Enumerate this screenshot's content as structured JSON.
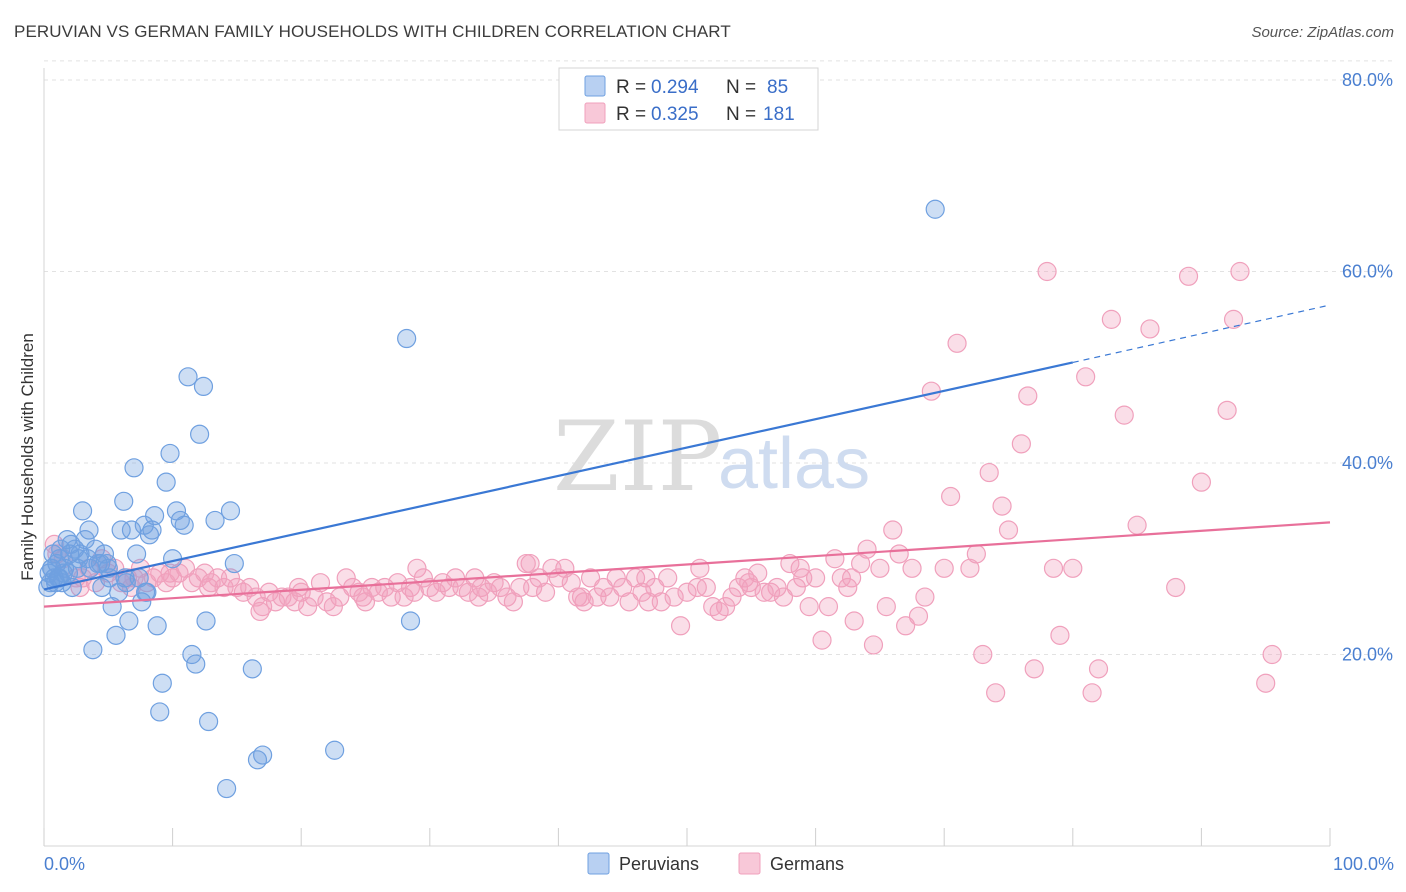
{
  "title": "PERUVIAN VS GERMAN FAMILY HOUSEHOLDS WITH CHILDREN CORRELATION CHART",
  "source": "Source: ZipAtlas.com",
  "watermark": {
    "zip": "ZIP",
    "atlas": "atlas"
  },
  "legend": {
    "r_label": "R =",
    "n_label": "N =",
    "rows": [
      {
        "r": "0.294",
        "n": "85"
      },
      {
        "r": "0.325",
        "n": "181"
      }
    ]
  },
  "chart_data": {
    "type": "scatter",
    "title": "PERUVIAN VS GERMAN FAMILY HOUSEHOLDS WITH CHILDREN CORRELATION CHART",
    "xlabel": "",
    "ylabel": "Family Households with Children",
    "x_tick_labels": [
      "0.0%",
      "100.0%"
    ],
    "y_tick_labels": [
      "20.0%",
      "40.0%",
      "60.0%",
      "80.0%"
    ],
    "xlim": [
      0,
      100
    ],
    "ylim": [
      0,
      82
    ],
    "grid": true,
    "colors": {
      "peruvians": "#6fa0e0",
      "germans": "#f0a0bc",
      "peruvians_line": "#3a78d4",
      "germans_line": "#e8709a"
    },
    "series": [
      {
        "name": "Peruvians",
        "r": 0.294,
        "n": 85,
        "trend": {
          "x0": 0,
          "y0": 26.8,
          "x1": 80,
          "y1": 50.5,
          "dashed_to_x": 100,
          "dashed_to_y": 56.5
        },
        "points": [
          [
            0.3,
            27
          ],
          [
            0.4,
            28.5
          ],
          [
            0.5,
            27.5
          ],
          [
            0.6,
            29
          ],
          [
            0.7,
            30.5
          ],
          [
            0.8,
            28
          ],
          [
            0.9,
            27.5
          ],
          [
            1.0,
            29.5
          ],
          [
            1.1,
            28
          ],
          [
            1.2,
            30
          ],
          [
            1.3,
            31
          ],
          [
            1.5,
            28.5
          ],
          [
            1.6,
            29
          ],
          [
            1.8,
            32
          ],
          [
            1.9,
            28.5
          ],
          [
            2.0,
            30.5
          ],
          [
            2.2,
            27
          ],
          [
            2.4,
            31
          ],
          [
            2.6,
            29
          ],
          [
            2.8,
            30.5
          ],
          [
            3.0,
            35
          ],
          [
            3.2,
            32
          ],
          [
            3.4,
            30
          ],
          [
            3.5,
            33
          ],
          [
            3.8,
            20.5
          ],
          [
            4.0,
            31
          ],
          [
            4.2,
            29.5
          ],
          [
            4.5,
            27
          ],
          [
            4.7,
            30.5
          ],
          [
            4.9,
            29.5
          ],
          [
            5.1,
            28
          ],
          [
            5.3,
            25
          ],
          [
            5.6,
            22
          ],
          [
            5.8,
            26.5
          ],
          [
            6.0,
            33
          ],
          [
            6.2,
            36
          ],
          [
            6.4,
            27.5
          ],
          [
            6.6,
            23.5
          ],
          [
            6.8,
            33
          ],
          [
            7.0,
            39.5
          ],
          [
            7.2,
            30.5
          ],
          [
            7.4,
            28
          ],
          [
            7.6,
            25.5
          ],
          [
            7.8,
            33.5
          ],
          [
            8.0,
            26.5
          ],
          [
            8.2,
            32.5
          ],
          [
            8.4,
            33
          ],
          [
            8.6,
            34.5
          ],
          [
            8.8,
            23
          ],
          [
            9.0,
            14
          ],
          [
            9.2,
            17
          ],
          [
            9.5,
            38
          ],
          [
            9.8,
            41
          ],
          [
            10.0,
            30
          ],
          [
            10.3,
            35
          ],
          [
            10.6,
            34
          ],
          [
            10.9,
            33.5
          ],
          [
            11.2,
            49
          ],
          [
            11.5,
            20
          ],
          [
            11.8,
            19
          ],
          [
            12.1,
            43
          ],
          [
            12.4,
            48
          ],
          [
            12.6,
            23.5
          ],
          [
            12.8,
            13
          ],
          [
            13.3,
            34
          ],
          [
            14.2,
            6
          ],
          [
            14.5,
            35
          ],
          [
            14.8,
            29.5
          ],
          [
            16.2,
            18.5
          ],
          [
            16.6,
            9
          ],
          [
            17.0,
            9.5
          ],
          [
            22.6,
            10
          ],
          [
            28.2,
            53
          ],
          [
            28.5,
            23.5
          ],
          [
            69.3,
            66.5
          ],
          [
            0.6,
            29
          ],
          [
            1.4,
            27.5
          ],
          [
            2.1,
            31.5
          ],
          [
            3.6,
            29
          ],
          [
            5.0,
            29
          ],
          [
            6.3,
            28
          ],
          [
            7.9,
            26.5
          ],
          [
            1.2,
            28
          ],
          [
            2.7,
            30
          ],
          [
            4.4,
            29.5
          ]
        ]
      },
      {
        "name": "Germans",
        "r": 0.325,
        "n": 181,
        "trend": {
          "x0": 0,
          "y0": 25,
          "x1": 100,
          "y1": 33.8
        },
        "points": [
          [
            0.8,
            31.5
          ],
          [
            1.5,
            30
          ],
          [
            2.5,
            28
          ],
          [
            2.8,
            27
          ],
          [
            3.5,
            29
          ],
          [
            4.0,
            27.5
          ],
          [
            4.5,
            30
          ],
          [
            5.0,
            28.5
          ],
          [
            5.5,
            29
          ],
          [
            6.0,
            27.5
          ],
          [
            6.5,
            28
          ],
          [
            7.0,
            28
          ],
          [
            7.5,
            29
          ],
          [
            8.0,
            27.5
          ],
          [
            8.5,
            28
          ],
          [
            9.0,
            28.5
          ],
          [
            9.5,
            27.5
          ],
          [
            10.0,
            28
          ],
          [
            10.5,
            28.5
          ],
          [
            11.0,
            29
          ],
          [
            11.5,
            27.5
          ],
          [
            12.0,
            28
          ],
          [
            12.5,
            28.5
          ],
          [
            13.0,
            27.5
          ],
          [
            13.5,
            28
          ],
          [
            14.0,
            27
          ],
          [
            14.5,
            28
          ],
          [
            15.0,
            27
          ],
          [
            15.5,
            26.5
          ],
          [
            16.0,
            27
          ],
          [
            16.5,
            26
          ],
          [
            17.0,
            25
          ],
          [
            17.5,
            26.5
          ],
          [
            18.0,
            25.5
          ],
          [
            18.5,
            26
          ],
          [
            19.0,
            26
          ],
          [
            19.5,
            25.5
          ],
          [
            20.0,
            26.5
          ],
          [
            20.5,
            25
          ],
          [
            21.0,
            26
          ],
          [
            21.5,
            27.5
          ],
          [
            22.0,
            25.5
          ],
          [
            22.5,
            25
          ],
          [
            23.0,
            26
          ],
          [
            23.5,
            28
          ],
          [
            24.0,
            27
          ],
          [
            24.5,
            26.5
          ],
          [
            25.0,
            25.5
          ],
          [
            25.5,
            27
          ],
          [
            26.0,
            26.5
          ],
          [
            26.5,
            27
          ],
          [
            27.0,
            26
          ],
          [
            27.5,
            27.5
          ],
          [
            28.0,
            26
          ],
          [
            28.5,
            27
          ],
          [
            29.0,
            29
          ],
          [
            29.5,
            28
          ],
          [
            30.0,
            27
          ],
          [
            30.5,
            26.5
          ],
          [
            31.0,
            27.5
          ],
          [
            31.5,
            27
          ],
          [
            32.0,
            28
          ],
          [
            32.5,
            27
          ],
          [
            33.0,
            26.5
          ],
          [
            33.5,
            28
          ],
          [
            34.0,
            27
          ],
          [
            34.5,
            26.5
          ],
          [
            35.0,
            27.5
          ],
          [
            35.5,
            27
          ],
          [
            36.0,
            26
          ],
          [
            36.5,
            25.5
          ],
          [
            37.0,
            27
          ],
          [
            37.5,
            29.5
          ],
          [
            38.0,
            27
          ],
          [
            38.5,
            28
          ],
          [
            39.0,
            26.5
          ],
          [
            39.5,
            29
          ],
          [
            40.0,
            28
          ],
          [
            40.5,
            29
          ],
          [
            41.0,
            27.5
          ],
          [
            41.5,
            26
          ],
          [
            42.0,
            25.5
          ],
          [
            42.5,
            28
          ],
          [
            43.0,
            26
          ],
          [
            43.5,
            27
          ],
          [
            44.0,
            26
          ],
          [
            44.5,
            28
          ],
          [
            45.0,
            27
          ],
          [
            45.5,
            25.5
          ],
          [
            46.0,
            28
          ],
          [
            46.5,
            26.5
          ],
          [
            47.0,
            25.5
          ],
          [
            47.5,
            27
          ],
          [
            48.0,
            25.5
          ],
          [
            48.5,
            28
          ],
          [
            49.0,
            26
          ],
          [
            49.5,
            23
          ],
          [
            50.0,
            26.5
          ],
          [
            51.0,
            29
          ],
          [
            51.5,
            27
          ],
          [
            52.0,
            25
          ],
          [
            52.5,
            24.5
          ],
          [
            53.0,
            25
          ],
          [
            53.5,
            26
          ],
          [
            54.0,
            27
          ],
          [
            54.5,
            28
          ],
          [
            55.0,
            27
          ],
          [
            55.5,
            28.5
          ],
          [
            56.0,
            26.5
          ],
          [
            56.5,
            26.5
          ],
          [
            57.0,
            27
          ],
          [
            57.5,
            26
          ],
          [
            58.0,
            29.5
          ],
          [
            58.5,
            27
          ],
          [
            59.0,
            28
          ],
          [
            59.5,
            25
          ],
          [
            60.0,
            28
          ],
          [
            60.5,
            21.5
          ],
          [
            61.0,
            25
          ],
          [
            61.5,
            30
          ],
          [
            62.0,
            28
          ],
          [
            62.5,
            27
          ],
          [
            63.0,
            23.5
          ],
          [
            63.5,
            29.5
          ],
          [
            64.0,
            31
          ],
          [
            64.5,
            21
          ],
          [
            65.0,
            29
          ],
          [
            65.5,
            25
          ],
          [
            66.0,
            33
          ],
          [
            66.5,
            30.5
          ],
          [
            67.0,
            23
          ],
          [
            67.5,
            29
          ],
          [
            68.0,
            24
          ],
          [
            68.5,
            26
          ],
          [
            69.0,
            47.5
          ],
          [
            70.0,
            29
          ],
          [
            70.5,
            36.5
          ],
          [
            71.0,
            52.5
          ],
          [
            72.0,
            29
          ],
          [
            72.5,
            30.5
          ],
          [
            73.0,
            20
          ],
          [
            73.5,
            39
          ],
          [
            74.0,
            16
          ],
          [
            74.5,
            35.5
          ],
          [
            75.0,
            33
          ],
          [
            76.0,
            42
          ],
          [
            76.5,
            47
          ],
          [
            77.0,
            18.5
          ],
          [
            78.0,
            60
          ],
          [
            78.5,
            29
          ],
          [
            79.0,
            22
          ],
          [
            80.0,
            29
          ],
          [
            81.0,
            49
          ],
          [
            81.5,
            16
          ],
          [
            82.0,
            18.5
          ],
          [
            83.0,
            55
          ],
          [
            84.0,
            45
          ],
          [
            85.0,
            33.5
          ],
          [
            86.0,
            54
          ],
          [
            88.0,
            27
          ],
          [
            89.0,
            59.5
          ],
          [
            90.0,
            38
          ],
          [
            92.0,
            45.5
          ],
          [
            92.5,
            55
          ],
          [
            93.0,
            60
          ],
          [
            95.0,
            17
          ],
          [
            95.5,
            20
          ],
          [
            1.0,
            30.5
          ],
          [
            3.0,
            28
          ],
          [
            6.8,
            27
          ],
          [
            9.8,
            28.5
          ],
          [
            12.8,
            27
          ],
          [
            16.8,
            24.5
          ],
          [
            19.8,
            27
          ],
          [
            24.8,
            26
          ],
          [
            28.8,
            26.5
          ],
          [
            33.8,
            26
          ],
          [
            37.8,
            29.5
          ],
          [
            41.8,
            26
          ],
          [
            46.8,
            28
          ],
          [
            50.8,
            27
          ],
          [
            54.8,
            27.5
          ],
          [
            58.8,
            29
          ],
          [
            62.8,
            28
          ]
        ]
      }
    ]
  }
}
